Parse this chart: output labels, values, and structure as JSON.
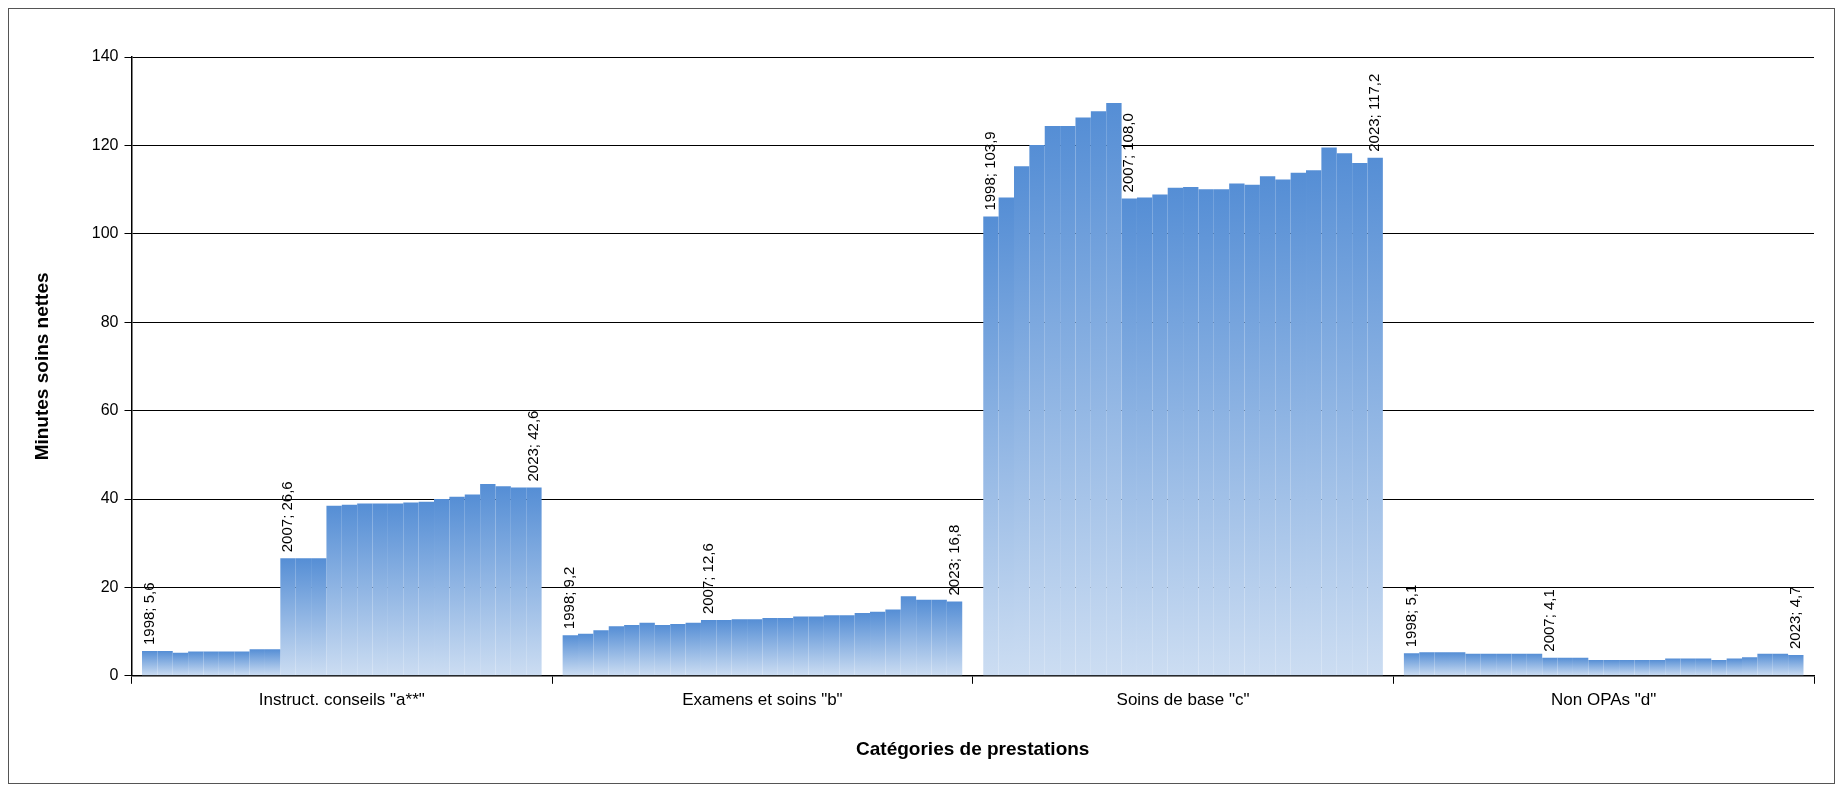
{
  "chart_data": {
    "type": "bar",
    "xlabel": "Catégories de prestations",
    "ylabel": "Minutes soins nettes",
    "categories": [
      "Instruct. conseils \"a**\"",
      "Examens et soins \"b\"",
      "Soins de base \"c\"",
      "Non OPAs \"d\""
    ],
    "color": "#558ed5",
    "ylim": [
      0,
      140
    ],
    "yticks": [
      0,
      20,
      40,
      60,
      80,
      100,
      120,
      140
    ],
    "grid": "y",
    "legend": false,
    "series": [
      {
        "values": [
          5.6,
          9.2,
          103.9,
          5.1
        ],
        "value_labels": [
          "1998; 5,6",
          "1998; 9,2",
          "1998; 103,9",
          "1998; 5,1"
        ]
      },
      {
        "values": [
          5.6,
          9.5,
          108.2,
          5.3
        ]
      },
      {
        "values": [
          5.2,
          10.3,
          115.3,
          5.3
        ]
      },
      {
        "values": [
          5.5,
          11.2,
          120.1,
          5.3
        ]
      },
      {
        "values": [
          5.5,
          11.5,
          124.4,
          5.0
        ]
      },
      {
        "values": [
          5.5,
          12.0,
          124.4,
          5.0
        ]
      },
      {
        "values": [
          5.5,
          11.5,
          126.3,
          5.0
        ]
      },
      {
        "values": [
          6.0,
          11.7,
          127.7,
          5.0
        ]
      },
      {
        "values": [
          6.0,
          12.0,
          129.6,
          5.0
        ]
      },
      {
        "values": [
          26.6,
          12.6,
          108.0,
          4.1
        ],
        "value_labels": [
          "2007; 26,6",
          "2007; 12,6",
          "2007; 108,0",
          "2007; 4,1"
        ]
      },
      {
        "values": [
          26.6,
          12.6,
          108.2,
          4.1
        ]
      },
      {
        "values": [
          26.6,
          12.8,
          108.9,
          4.1
        ]
      },
      {
        "values": [
          38.5,
          12.8,
          110.4,
          3.6
        ]
      },
      {
        "values": [
          38.7,
          13.1,
          110.6,
          3.6
        ]
      },
      {
        "values": [
          39.0,
          13.1,
          110.1,
          3.6
        ]
      },
      {
        "values": [
          39.0,
          13.4,
          110.1,
          3.6
        ]
      },
      {
        "values": [
          39.0,
          13.4,
          111.4,
          3.6
        ]
      },
      {
        "values": [
          39.2,
          13.7,
          111.1,
          3.9
        ]
      },
      {
        "values": [
          39.4,
          13.7,
          113.0,
          3.9
        ]
      },
      {
        "values": [
          40.0,
          14.2,
          112.3,
          3.9
        ]
      },
      {
        "values": [
          40.5,
          14.5,
          113.8,
          3.6
        ]
      },
      {
        "values": [
          41.0,
          15.0,
          114.4,
          3.9
        ]
      },
      {
        "values": [
          43.4,
          18.0,
          119.5,
          4.2
        ]
      },
      {
        "values": [
          42.9,
          17.2,
          118.2,
          5.0
        ]
      },
      {
        "values": [
          42.6,
          17.2,
          116.0,
          5.0
        ]
      },
      {
        "values": [
          42.6,
          16.8,
          117.2,
          4.7
        ],
        "value_labels": [
          "2023; 42,6",
          "2023; 16,8",
          "2023; 117,2",
          "2023; 4,7"
        ]
      }
    ]
  }
}
